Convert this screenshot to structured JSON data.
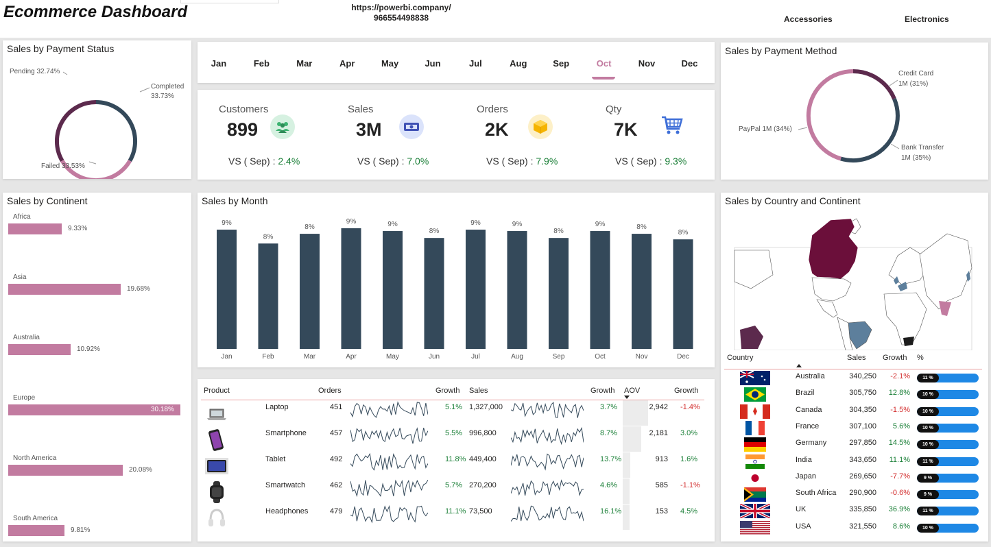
{
  "header": {
    "title": "Ecommerce Dashboard",
    "url_line1": "https://powerbi.company/",
    "url_line2": "966554498838",
    "category_1": "Accessories",
    "category_2": "Electronics"
  },
  "months": [
    "Jan",
    "Feb",
    "Mar",
    "Apr",
    "May",
    "Jun",
    "Jul",
    "Aug",
    "Sep",
    "Oct",
    "Nov",
    "Dec"
  ],
  "selected_month": "Oct",
  "kpis": [
    {
      "label": "Customers",
      "value": "899",
      "vs": "VS ( Sep) : ",
      "pct": "2.4%",
      "icon": "people-icon",
      "color": "#d6f1e1"
    },
    {
      "label": "Sales",
      "value": "3M",
      "vs": "VS ( Sep) : ",
      "pct": "7.0%",
      "icon": "money-icon",
      "color": "#dbe3fb"
    },
    {
      "label": "Orders",
      "value": "2K",
      "vs": "VS ( Sep) : ",
      "pct": "7.9%",
      "icon": "box-icon",
      "color": "#fdf0c8"
    },
    {
      "label": "Qty",
      "value": "7K",
      "vs": "VS ( Sep) : ",
      "pct": "9.3%",
      "icon": "cart-icon",
      "color": "#ffffff"
    }
  ],
  "payment_status": {
    "title": "Sales by Payment Status",
    "labels": {
      "pending": "Pending 32.74%",
      "completed_1": "Completed",
      "completed_2": "33.73%",
      "failed": "Failed 33.53%"
    }
  },
  "payment_method": {
    "title": "Sales by Payment Method",
    "labels": {
      "credit_1": "Credit Card",
      "credit_2": "1M (31%)",
      "paypal": "PayPal 1M (34%)",
      "bank_1": "Bank Transfer",
      "bank_2": "1M (35%)"
    }
  },
  "continent": {
    "title": "Sales by Continent",
    "items": [
      {
        "name": "Africa",
        "value": "9.33%",
        "pct": 9.33
      },
      {
        "name": "Asia",
        "value": "19.68%",
        "pct": 19.68
      },
      {
        "name": "Australia",
        "value": "10.92%",
        "pct": 10.92
      },
      {
        "name": "Europe",
        "value": "30.18%",
        "pct": 30.18
      },
      {
        "name": "North America",
        "value": "20.08%",
        "pct": 20.08
      },
      {
        "name": "South America",
        "value": "9.81%",
        "pct": 9.81
      }
    ]
  },
  "chart_data": {
    "type": "bar",
    "title": "Sales by Month",
    "categories": [
      "Jan",
      "Feb",
      "Mar",
      "Apr",
      "May",
      "Jun",
      "Jul",
      "Aug",
      "Sep",
      "Oct",
      "Nov",
      "Dec"
    ],
    "values": [
      8.6,
      7.6,
      8.3,
      8.7,
      8.5,
      8.0,
      8.6,
      8.5,
      8.0,
      8.5,
      8.3,
      7.9
    ],
    "data_labels": [
      "9%",
      "8%",
      "8%",
      "9%",
      "9%",
      "8%",
      "9%",
      "9%",
      "8%",
      "9%",
      "8%",
      "8%"
    ],
    "color": "#34495a"
  },
  "products": {
    "headers": {
      "product": "Product",
      "orders": "Orders",
      "growth1": "Growth",
      "sales": "Sales",
      "growth2": "Growth",
      "aov": "AOV",
      "growth3": "Growth"
    },
    "rows": [
      {
        "name": "Laptop",
        "orders": "451",
        "g1": "5.1%",
        "sales": "1,327,000",
        "g2": "3.7%",
        "aov": "2,942",
        "aov_num": 2942,
        "g3": "-1.4%",
        "icon": "laptop-icon"
      },
      {
        "name": "Smartphone",
        "orders": "457",
        "g1": "5.5%",
        "sales": "996,800",
        "g2": "8.7%",
        "aov": "2,181",
        "aov_num": 2181,
        "g3": "3.0%",
        "icon": "smartphone-icon"
      },
      {
        "name": "Tablet",
        "orders": "492",
        "g1": "11.8%",
        "sales": "449,400",
        "g2": "13.7%",
        "aov": "913",
        "aov_num": 913,
        "g3": "1.6%",
        "icon": "tablet-icon"
      },
      {
        "name": "Smartwatch",
        "orders": "462",
        "g1": "5.7%",
        "sales": "270,200",
        "g2": "4.6%",
        "aov": "585",
        "aov_num": 585,
        "g3": "-1.1%",
        "icon": "smartwatch-icon"
      },
      {
        "name": "Headphones",
        "orders": "479",
        "g1": "11.1%",
        "sales": "73,500",
        "g2": "16.1%",
        "aov": "153",
        "aov_num": 153,
        "g3": "4.5%",
        "icon": "headphones-icon"
      }
    ]
  },
  "country": {
    "title": "Sales by Country and Continent",
    "headers": {
      "country": "Country",
      "sales": "Sales",
      "growth": "Growth",
      "pct": "%"
    },
    "rows": [
      {
        "name": "Australia",
        "sales": "340,250",
        "growth": "-2.1%",
        "pct": "11 %",
        "flag": "australia"
      },
      {
        "name": "Brazil",
        "sales": "305,750",
        "growth": "12.8%",
        "pct": "10 %",
        "flag": "brazil"
      },
      {
        "name": "Canada",
        "sales": "304,350",
        "growth": "-1.5%",
        "pct": "10 %",
        "flag": "canada"
      },
      {
        "name": "France",
        "sales": "307,100",
        "growth": "5.6%",
        "pct": "10 %",
        "flag": "france"
      },
      {
        "name": "Germany",
        "sales": "297,850",
        "growth": "14.5%",
        "pct": "10 %",
        "flag": "germany"
      },
      {
        "name": "India",
        "sales": "343,650",
        "growth": "11.1%",
        "pct": "11 %",
        "flag": "india"
      },
      {
        "name": "Japan",
        "sales": "269,650",
        "growth": "-7.7%",
        "pct": "9 %",
        "flag": "japan"
      },
      {
        "name": "South Africa",
        "sales": "290,900",
        "growth": "-0.6%",
        "pct": "9 %",
        "flag": "southafrica"
      },
      {
        "name": "UK",
        "sales": "335,850",
        "growth": "36.9%",
        "pct": "11 %",
        "flag": "uk"
      },
      {
        "name": "USA",
        "sales": "321,550",
        "growth": "8.6%",
        "pct": "10 %",
        "flag": "usa"
      }
    ]
  }
}
